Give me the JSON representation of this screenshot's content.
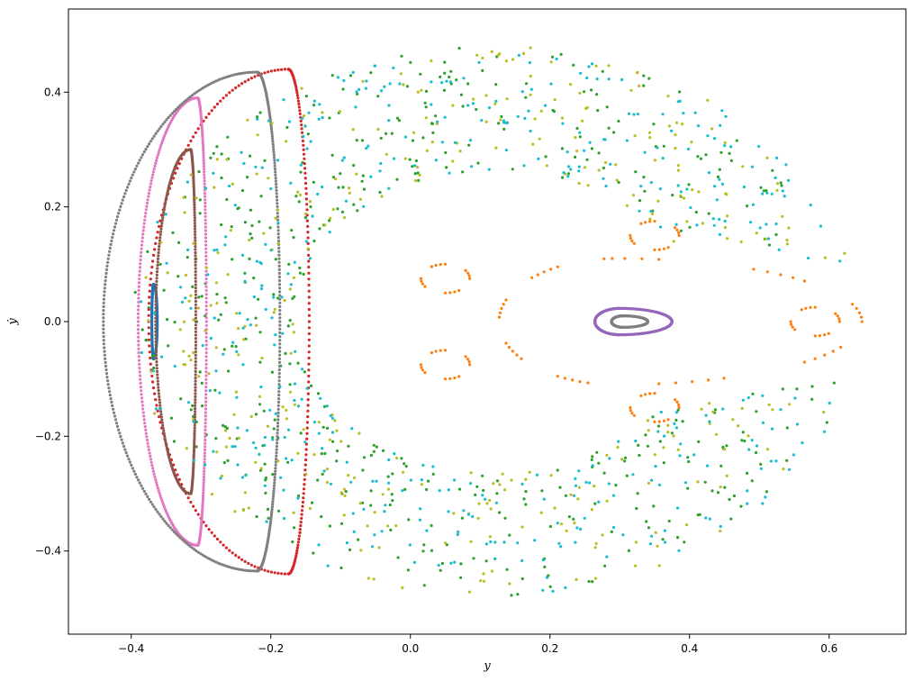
{
  "chart_data": {
    "type": "scatter",
    "title": "",
    "xlabel": "y",
    "ylabel": "ẏ",
    "xlim": [
      -0.49,
      0.71
    ],
    "ylim": [
      -0.545,
      0.545
    ],
    "x_ticks": [
      -0.4,
      -0.2,
      0.0,
      0.2,
      0.4,
      0.6
    ],
    "x_tick_labels": [
      "−0.4",
      "−0.2",
      "0.0",
      "0.2",
      "0.4",
      "0.6"
    ],
    "y_ticks": [
      -0.4,
      -0.2,
      0.0,
      0.2,
      0.4
    ],
    "y_tick_labels": [
      "−0.4",
      "−0.2",
      "0.0",
      "0.2",
      "0.4"
    ],
    "grid": false,
    "legend": "none",
    "series": [
      {
        "color": "#1f77b4",
        "shape": "ellipse",
        "points": 260,
        "center": [
          -0.368,
          0.0
        ],
        "radii": [
          0.006,
          0.065
        ]
      },
      {
        "color": "#ff7f0e",
        "shape": "ellipse",
        "points": 90,
        "center": [
          0.295,
          0.0
        ],
        "radii": [
          0.4,
          0.11
        ],
        "gapped": true
      },
      {
        "color": "#ff7f0e",
        "shape": "islands",
        "points": 160,
        "centers": [
          [
            0.35,
            0.15
          ],
          [
            0.35,
            -0.15
          ],
          [
            0.58,
            0.0
          ],
          [
            0.05,
            0.075
          ],
          [
            0.05,
            -0.075
          ]
        ]
      },
      {
        "color": "#2ca02c",
        "shape": "chaos",
        "points": 520
      },
      {
        "color": "#d62728",
        "shape": "crescent",
        "points": 260,
        "center": [
          -0.175,
          0.0
        ],
        "radii": [
          0.2,
          0.44
        ]
      },
      {
        "color": "#9467bd",
        "shape": "ellipse",
        "points": 340,
        "center": [
          0.3,
          0.0
        ],
        "radii": [
          0.085,
          0.023
        ]
      },
      {
        "color": "#8c564b",
        "shape": "crescent",
        "points": 320,
        "center": [
          -0.315,
          0.0
        ],
        "radii": [
          0.05,
          0.3
        ]
      },
      {
        "color": "#e377c2",
        "shape": "crescent",
        "points": 360,
        "center": [
          -0.305,
          0.0
        ],
        "radii": [
          0.085,
          0.39
        ]
      },
      {
        "color": "#7f7f7f",
        "shape": "crescent",
        "points": 420,
        "center": [
          -0.22,
          0.0
        ],
        "radii": [
          0.22,
          0.435
        ]
      },
      {
        "color": "#7f7f7f",
        "shape": "ellipse",
        "points": 200,
        "center": [
          0.305,
          0.0
        ],
        "radii": [
          0.04,
          0.01
        ]
      },
      {
        "color": "#bcbd22",
        "shape": "chaos",
        "points": 380
      },
      {
        "color": "#17becf",
        "shape": "chaos",
        "points": 480
      }
    ]
  }
}
